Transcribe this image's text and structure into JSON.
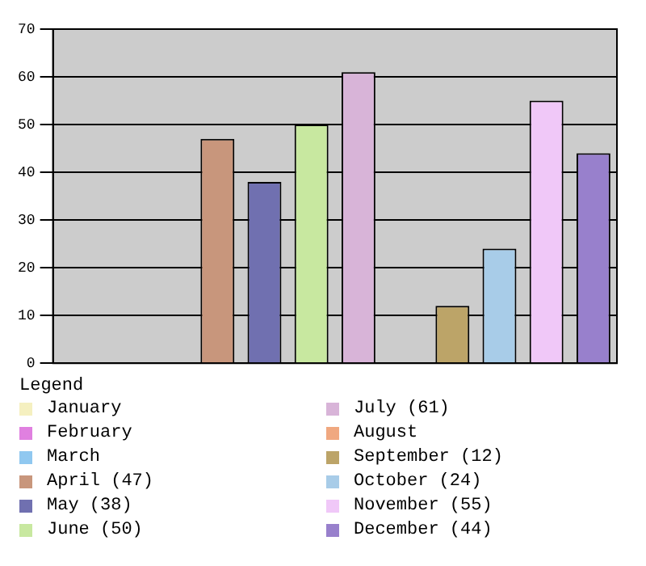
{
  "chart_data": {
    "type": "bar",
    "categories": [
      null,
      null,
      null,
      null,
      null,
      null,
      null,
      null,
      null,
      null,
      null,
      null
    ],
    "series": [
      {
        "name": "January",
        "color": "#f5f0c0",
        "values": [
          0,
          null,
          null,
          null,
          null,
          null,
          null,
          null,
          null,
          null,
          null,
          null
        ]
      },
      {
        "name": "February",
        "color": "#e080e0",
        "values": [
          null,
          0,
          null,
          null,
          null,
          null,
          null,
          null,
          null,
          null,
          null,
          null
        ]
      },
      {
        "name": "March",
        "color": "#90c8f0",
        "values": [
          null,
          null,
          0,
          null,
          null,
          null,
          null,
          null,
          null,
          null,
          null,
          null
        ]
      },
      {
        "name": "April (47)",
        "color": "#c8967c",
        "values": [
          null,
          null,
          null,
          47,
          null,
          null,
          null,
          null,
          null,
          null,
          null,
          null
        ]
      },
      {
        "name": "May (38)",
        "color": "#7070b0",
        "values": [
          null,
          null,
          null,
          null,
          38,
          null,
          null,
          null,
          null,
          null,
          null,
          null
        ]
      },
      {
        "name": "June (50)",
        "color": "#c8e8a0",
        "values": [
          null,
          null,
          null,
          null,
          null,
          50,
          null,
          null,
          null,
          null,
          null,
          null
        ]
      },
      {
        "name": "July (61)",
        "color": "#d8b4d8",
        "values": [
          null,
          null,
          null,
          null,
          null,
          null,
          61,
          null,
          null,
          null,
          null,
          null
        ]
      },
      {
        "name": "August",
        "color": "#f0a880",
        "values": [
          null,
          null,
          null,
          null,
          null,
          null,
          null,
          0,
          null,
          null,
          null,
          null
        ]
      },
      {
        "name": "September (12)",
        "color": "#bca468",
        "values": [
          null,
          null,
          null,
          null,
          null,
          null,
          null,
          null,
          12,
          null,
          null,
          null
        ]
      },
      {
        "name": "October (24)",
        "color": "#a8cce8",
        "values": [
          null,
          null,
          null,
          null,
          null,
          null,
          null,
          null,
          null,
          24,
          null,
          null
        ]
      },
      {
        "name": "November (55)",
        "color": "#f0c8f8",
        "values": [
          null,
          null,
          null,
          null,
          null,
          null,
          null,
          null,
          null,
          null,
          55,
          null
        ]
      },
      {
        "name": "December (44)",
        "color": "#9880cc",
        "values": [
          null,
          null,
          null,
          null,
          null,
          null,
          null,
          null,
          null,
          null,
          null,
          44
        ]
      }
    ],
    "ylim": [
      0,
      70
    ],
    "yticks": [
      0,
      10,
      20,
      30,
      40,
      50,
      60,
      70
    ],
    "grid": "y",
    "tick_labels": "y",
    "legend": "bottom",
    "legend_title": "Legend"
  }
}
